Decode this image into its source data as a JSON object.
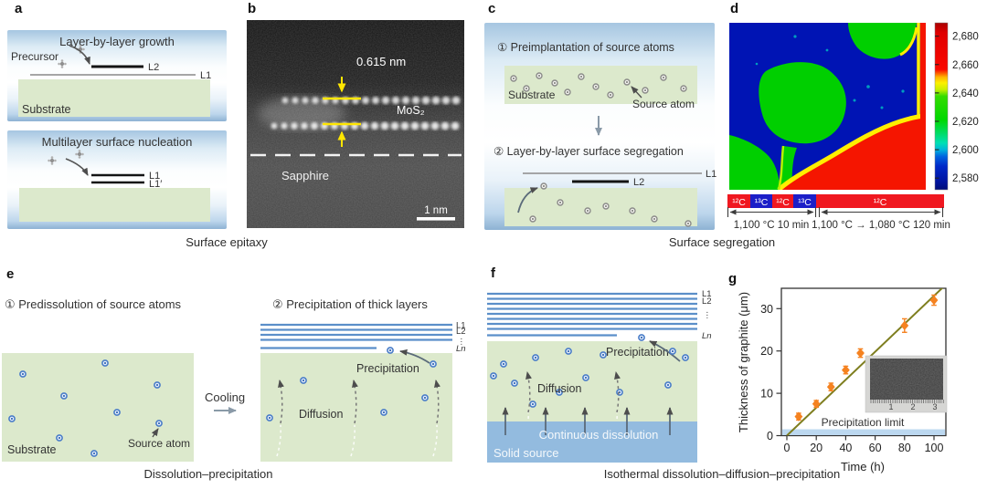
{
  "figure": {
    "panel_labels": {
      "a": "a",
      "b": "b",
      "c": "c",
      "d": "d",
      "e": "e",
      "f": "f",
      "g": "g"
    },
    "captions": {
      "ab": "Surface epitaxy",
      "cd": "Surface segregation",
      "e": "Dissolution–precipitation",
      "fg": "Isothermal dissolution–diffusion–precipitation"
    }
  },
  "panel_a": {
    "box1": {
      "title": "Layer-by-layer growth",
      "precursor": "Precursor",
      "l2": "L2",
      "l1": "L1",
      "substrate": "Substrate"
    },
    "box2": {
      "title": "Multilayer surface nucleation",
      "l1": "L1",
      "l1_prime": "L1′"
    }
  },
  "panel_b": {
    "measurement": "0.615 nm",
    "material": "MoS₂",
    "substrate": "Sapphire",
    "scale_bar": "1 nm"
  },
  "panel_c": {
    "step1": "① Preimplantation of source atoms",
    "substrate": "Substrate",
    "source_atom": "Source atom",
    "step2": "② Layer-by-layer surface segregation",
    "l1": "L1",
    "l2": "L2"
  },
  "panel_d": {
    "isotope_sequence": [
      {
        "label": "¹²C",
        "color": "#f01820"
      },
      {
        "label": "¹³C",
        "color": "#1c1fc8"
      },
      {
        "label": "¹²C",
        "color": "#f01820"
      },
      {
        "label": "¹³C",
        "color": "#1c1fc8"
      },
      {
        "label": "¹²C",
        "color": "#f01820"
      }
    ],
    "anneal_step1": "1,100 °C 10 min",
    "anneal_step2": "1,100 °C → 1,080 °C 120 min"
  },
  "panel_e": {
    "step1": "① Predissolution of source atoms",
    "substrate": "Substrate",
    "source_atom": "Source atom",
    "cooling": "Cooling",
    "step2": "② Precipitation of thick layers",
    "l1": "L1",
    "l2": "L2",
    "dots": "⋮",
    "ln": "Ln",
    "diffusion": "Diffusion",
    "precipitation": "Precipitation"
  },
  "panel_f": {
    "l1": "L1",
    "l2": "L2",
    "dots": "⋮",
    "ln": "Ln",
    "diffusion": "Diffusion",
    "precipitation": "Precipitation",
    "continuous_dissolution": "Continuous dissolution",
    "solid_source": "Solid source"
  },
  "panel_g": {
    "inset_ruler_marks": [
      "1",
      "2",
      "3"
    ]
  },
  "chart_data": [
    {
      "type": "heatmap",
      "panel": "d",
      "description": "Raman shift map of isotope-labelled multilayer graphene; coloured domains show ¹²C/¹³C regions",
      "colorbar_ticks": [
        "2,680",
        "2,660",
        "2,640",
        "2,620",
        "2,600",
        "2,580"
      ],
      "value_range": [
        2580,
        2680
      ],
      "legend_position": "right",
      "regions": [
        {
          "color": "blue",
          "approx_value": 2585,
          "location": "upper-left field"
        },
        {
          "color": "green",
          "approx_value": 2625,
          "location": "central blob, top-right corner, lower-left"
        },
        {
          "color": "red",
          "approx_value": 2680,
          "location": "lower-right region and right edge stripe"
        },
        {
          "color": "yellow",
          "approx_value": 2645,
          "location": "domain boundaries"
        }
      ]
    },
    {
      "type": "scatter",
      "panel": "g",
      "x": [
        8,
        20,
        30,
        40,
        50,
        80,
        100
      ],
      "y": [
        4.5,
        7.5,
        11.5,
        15.5,
        19.5,
        26,
        32
      ],
      "yerr": [
        0.8,
        0.8,
        0.9,
        0.9,
        1.0,
        1.6,
        1.2
      ],
      "fit_line": {
        "x": [
          0,
          106
        ],
        "y": [
          0,
          35
        ]
      },
      "xlabel": "Time (h)",
      "ylabel": "Thickness of graphite (μm)",
      "xticks": [
        0,
        20,
        40,
        60,
        80,
        100
      ],
      "yticks": [
        0,
        10,
        20,
        30
      ],
      "xlim": [
        -6,
        108
      ],
      "ylim": [
        0,
        35.5
      ],
      "annotation": "Precipitation limit",
      "marker": "diamond",
      "marker_color": "#f58220",
      "line_color": "#7e7e1f",
      "grid": false,
      "legend_position": "none"
    }
  ]
}
